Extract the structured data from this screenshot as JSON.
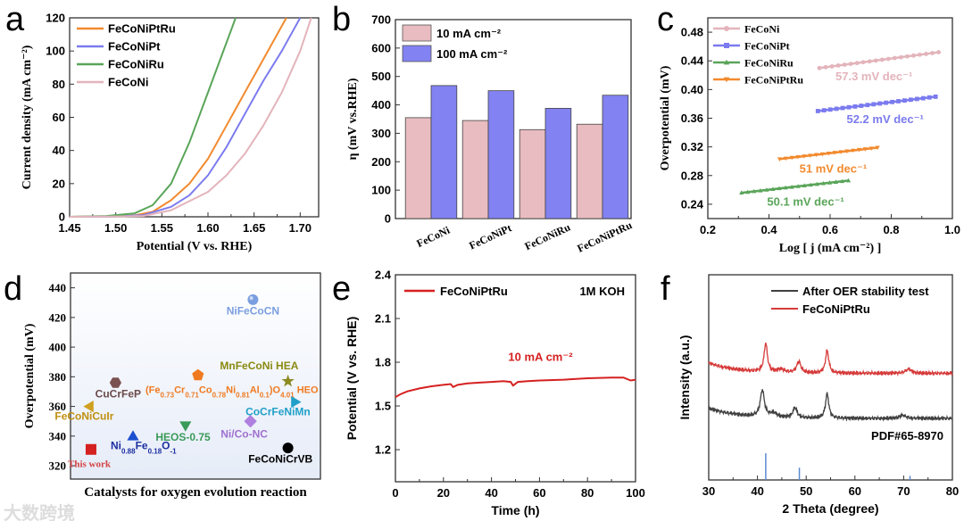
{
  "watermark": "大数跨境",
  "chart_data": [
    {
      "panel": "a",
      "type": "line",
      "xlabel": "Potential (V vs. RHE)",
      "ylabel": "Current density (mA cm⁻²)",
      "xlim": [
        1.45,
        1.72
      ],
      "ylim": [
        0,
        120
      ],
      "xticks": [
        "1.45",
        "1.50",
        "1.55",
        "1.60",
        "1.65",
        "1.70"
      ],
      "xtick_values": [
        1.45,
        1.5,
        1.55,
        1.6,
        1.65,
        1.7
      ],
      "yticks": [
        "0",
        "20",
        "40",
        "60",
        "80",
        "100",
        "120"
      ],
      "ytick_values": [
        0,
        20,
        40,
        60,
        80,
        100,
        120
      ],
      "legend_position": "top-left",
      "series": [
        {
          "name": "FeCoNiPtRu",
          "color": "#f28a2e",
          "x": [
            1.45,
            1.5,
            1.52,
            1.54,
            1.56,
            1.58,
            1.6,
            1.62,
            1.64,
            1.66,
            1.685
          ],
          "y": [
            0,
            0.3,
            0.8,
            3,
            10,
            20,
            35,
            55,
            75,
            95,
            120
          ]
        },
        {
          "name": "FeCoNiPt",
          "color": "#7b7bef",
          "x": [
            1.45,
            1.5,
            1.53,
            1.56,
            1.58,
            1.6,
            1.62,
            1.64,
            1.66,
            1.68,
            1.7
          ],
          "y": [
            0,
            0.2,
            1,
            6,
            13,
            25,
            42,
            62,
            82,
            100,
            120
          ]
        },
        {
          "name": "FeCoNiRu",
          "color": "#5aa55a",
          "x": [
            1.45,
            1.49,
            1.5,
            1.52,
            1.54,
            1.56,
            1.58,
            1.6,
            1.62,
            1.63
          ],
          "y": [
            0,
            0.5,
            1,
            2,
            7,
            20,
            45,
            75,
            105,
            120
          ]
        },
        {
          "name": "FeCoNi",
          "color": "#e3b4bb",
          "x": [
            1.45,
            1.5,
            1.53,
            1.56,
            1.6,
            1.62,
            1.64,
            1.66,
            1.68,
            1.7,
            1.712
          ],
          "y": [
            0,
            0.2,
            0.5,
            4,
            15,
            25,
            38,
            55,
            75,
            100,
            120
          ]
        }
      ]
    },
    {
      "panel": "b",
      "type": "bar",
      "ylabel": "η (mV vs.RHE)",
      "ylim": [
        0,
        700
      ],
      "yticks": [
        "0",
        "100",
        "200",
        "300",
        "400",
        "500",
        "600",
        "700"
      ],
      "ytick_values": [
        0,
        100,
        200,
        300,
        400,
        500,
        600,
        700
      ],
      "categories": [
        "FeCoNi",
        "FeCoNiPt",
        "FeCoNiRu",
        "FeCoNiPtRu"
      ],
      "legend_position": "top-left",
      "series": [
        {
          "name": "10 mA cm⁻²",
          "color": "#e8bcc0",
          "values": [
            355,
            345,
            313,
            332
          ]
        },
        {
          "name": "100 mA cm⁻²",
          "color": "#8282f2",
          "values": [
            468,
            450,
            388,
            434
          ]
        }
      ]
    },
    {
      "panel": "c",
      "type": "line",
      "xlabel": "Log [ j (mA cm⁻²) ]",
      "ylabel": "Overpotential (mV)",
      "xlim": [
        0.2,
        1.0
      ],
      "ylim": [
        0.22,
        0.5
      ],
      "xticks": [
        "0.2",
        "0.4",
        "0.6",
        "0.8",
        "1.0"
      ],
      "xtick_values": [
        0.2,
        0.4,
        0.6,
        0.8,
        1.0
      ],
      "yticks": [
        "0.24",
        "0.28",
        "0.32",
        "0.36",
        "0.40",
        "0.44",
        "0.48"
      ],
      "ytick_values": [
        0.24,
        0.28,
        0.32,
        0.36,
        0.4,
        0.44,
        0.48
      ],
      "legend_position": "top-left",
      "series": [
        {
          "name": "FeCoNi",
          "color": "#e3b4bb",
          "marker": "circle",
          "x": [
            0.565,
            0.955
          ],
          "y": [
            0.43,
            0.452
          ],
          "annotation": "57.3 mV dec⁻¹",
          "ann_at": [
            0.74,
            0.413
          ]
        },
        {
          "name": "FeCoNiPt",
          "color": "#7b7bef",
          "marker": "square",
          "x": [
            0.56,
            0.945
          ],
          "y": [
            0.37,
            0.39
          ],
          "annotation": "52.2 mV dec⁻¹",
          "ann_at": [
            0.78,
            0.353
          ]
        },
        {
          "name": "FeCoNiRu",
          "color": "#5aa55a",
          "marker": "triangle",
          "x": [
            0.31,
            0.66
          ],
          "y": [
            0.256,
            0.273
          ],
          "annotation": "50.1 mV dec⁻¹",
          "ann_at": [
            0.52,
            0.238
          ]
        },
        {
          "name": "FeCoNiPtRu",
          "color": "#f28a2e",
          "marker": "tri-down",
          "x": [
            0.435,
            0.755
          ],
          "y": [
            0.303,
            0.319
          ],
          "annotation": "51 mV dec⁻¹",
          "ann_at": [
            0.61,
            0.284
          ]
        }
      ]
    },
    {
      "panel": "d",
      "type": "scatter",
      "xlabel": "Catalysts for oxygen evolution reaction",
      "ylabel": "Overpotential (mV)",
      "xlim": [
        0,
        10
      ],
      "ylim": [
        311,
        450
      ],
      "yticks": [
        "320",
        "340",
        "360",
        "380",
        "400",
        "420",
        "440"
      ],
      "ytick_values": [
        320,
        340,
        360,
        380,
        400,
        420,
        440
      ],
      "points": [
        {
          "label": [
            {
              "t": "This work"
            }
          ],
          "x": 0.82,
          "y": 331,
          "marker": "square",
          "color": "#d42020",
          "label_color": "#d44040",
          "label_font": "serif",
          "lx": 0.75,
          "ly": 322
        },
        {
          "label": [
            {
              "t": "CuCrFeP"
            }
          ],
          "x": 1.8,
          "y": 376,
          "marker": "hexagon",
          "color": "#7a5050",
          "label_color": "#6a4a4a",
          "lx": 1.8,
          "ly": 366
        },
        {
          "label": [
            {
              "t": "FeCoNiCuIr"
            }
          ],
          "x": 0.75,
          "y": 360,
          "marker": "tri-left",
          "color": "#d0a020",
          "label_color": "#c09010",
          "lx": 0.55,
          "ly": 351
        },
        {
          "label": [
            {
              "t": "Ni"
            },
            {
              "t": "0.88",
              "sub": true
            },
            {
              "t": "Fe"
            },
            {
              "t": "0.18",
              "sub": true
            },
            {
              "t": "O"
            },
            {
              "t": "-1",
              "sub": true
            }
          ],
          "x": 2.5,
          "y": 340,
          "marker": "triangle",
          "color": "#1c4fd0",
          "label_color": "#1c2fa0",
          "lx": 2.55,
          "ly": 330
        },
        {
          "label": [
            {
              "t": "(Fe"
            },
            {
              "t": "0.73",
              "sub": true
            },
            {
              "t": "Cr"
            },
            {
              "t": "0.71",
              "sub": true
            },
            {
              "t": "Co"
            },
            {
              "t": "0.78",
              "sub": true
            },
            {
              "t": "Ni"
            },
            {
              "t": "0.81",
              "sub": true
            },
            {
              "t": "Al"
            },
            {
              "t": "0.1",
              "sub": true
            },
            {
              "t": ")O"
            },
            {
              "t": "4.01",
              "sub": true
            },
            {
              "t": " HEO"
            }
          ],
          "x": 5.1,
          "y": 381,
          "marker": "pentagon",
          "color": "#f07a20",
          "label_color": "#f07a20",
          "lx": 6.6,
          "ly": 369
        },
        {
          "label": [
            {
              "t": "HEOS-0.75"
            }
          ],
          "x": 4.6,
          "y": 347,
          "marker": "tri-down",
          "color": "#3a9a5a",
          "label_color": "#3a9a5a",
          "lx": 4.5,
          "ly": 337
        },
        {
          "label": [
            {
              "t": "NiFeCoCN"
            }
          ],
          "x": 7.3,
          "y": 432,
          "marker": "sphere",
          "color": "#7a9ee0",
          "label_color": "#7a9ee0",
          "lx": 7.3,
          "ly": 422
        },
        {
          "label": [
            {
              "t": "Ni/Co-NC"
            }
          ],
          "x": 7.2,
          "y": 350,
          "marker": "diamond",
          "color": "#b080e0",
          "label_color": "#a070d0",
          "lx": 6.95,
          "ly": 339
        },
        {
          "label": [
            {
              "t": "MnFeCoNi HEA"
            }
          ],
          "x": 8.7,
          "y": 377,
          "marker": "star",
          "color": "#8a8a20",
          "label_color": "#8a8a10",
          "lx": 7.55,
          "ly": 385
        },
        {
          "label": [
            {
              "t": "CoCrFeNiMn"
            }
          ],
          "x": 9.0,
          "y": 363,
          "marker": "tri-right",
          "color": "#20a0c8",
          "label_color": "#20a0c8",
          "lx": 8.3,
          "ly": 354
        },
        {
          "label": [
            {
              "t": "FeCoNiCrVB"
            }
          ],
          "x": 8.7,
          "y": 332,
          "marker": "circle",
          "color": "#000000",
          "label_color": "#000000",
          "lx": 8.4,
          "ly": 322
        }
      ]
    },
    {
      "panel": "e",
      "type": "line",
      "xlabel": "Time (h)",
      "ylabel": "Potential (V vs. RHE)",
      "xlim": [
        0,
        100
      ],
      "ylim": [
        0.98,
        2.4
      ],
      "xticks": [
        "0",
        "20",
        "40",
        "60",
        "80",
        "100"
      ],
      "xtick_values": [
        0,
        20,
        40,
        60,
        80,
        100
      ],
      "yticks": [
        "1.2",
        "1.5",
        "1.8",
        "2.1",
        "2.4"
      ],
      "ytick_values": [
        1.2,
        1.5,
        1.8,
        2.1,
        2.4
      ],
      "legend_position": "top-left",
      "annotation_top_right": "1M KOH",
      "annotation": "10 mA cm⁻²",
      "series": [
        {
          "name": "FeCoNiPtRu",
          "color": "#d62020",
          "x": [
            0,
            2,
            5,
            10,
            15,
            20,
            23,
            24,
            26,
            30,
            35,
            40,
            45,
            48,
            49,
            51,
            55,
            60,
            70,
            80,
            90,
            95,
            98,
            100
          ],
          "y": [
            1.56,
            1.58,
            1.6,
            1.62,
            1.635,
            1.645,
            1.65,
            1.63,
            1.645,
            1.655,
            1.66,
            1.665,
            1.67,
            1.665,
            1.64,
            1.665,
            1.67,
            1.675,
            1.68,
            1.69,
            1.695,
            1.695,
            1.675,
            1.68
          ]
        }
      ]
    },
    {
      "panel": "f",
      "type": "line",
      "xlabel": "2 Theta (degree)",
      "ylabel": "Intensity (a.u.)",
      "xlim": [
        30,
        80
      ],
      "ylim": [
        0,
        1
      ],
      "xticks": [
        "30",
        "40",
        "50",
        "60",
        "70",
        "80"
      ],
      "xtick_values": [
        30,
        40,
        50,
        60,
        70,
        80
      ],
      "legend_position": "top-right",
      "reference_label": "PDF#65-8970",
      "reference_color": "#5a8ad0",
      "reference_peaks": [
        {
          "x": 41.7,
          "h": 0.13
        },
        {
          "x": 48.6,
          "h": 0.06
        },
        {
          "x": 71.3,
          "h": 0.02
        }
      ],
      "series": [
        {
          "name": "After OER stability test",
          "color": "#404040",
          "baseline": 0.3,
          "decay": 0.05,
          "peaks": [
            [
              41.0,
              0.13,
              0.5
            ],
            [
              43.3,
              0.02,
              0.8
            ],
            [
              47.7,
              0.05,
              0.5
            ],
            [
              54.3,
              0.12,
              0.4
            ],
            [
              69.8,
              0.015,
              0.8
            ]
          ]
        },
        {
          "name": "FeCoNiPtRu",
          "color": "#d63a3a",
          "baseline": 0.52,
          "decay": 0.05,
          "peaks": [
            [
              41.7,
              0.14,
              0.4
            ],
            [
              44.8,
              0.015,
              0.8
            ],
            [
              48.5,
              0.055,
              0.5
            ],
            [
              54.3,
              0.11,
              0.4
            ],
            [
              71.0,
              0.02,
              0.7
            ]
          ]
        }
      ]
    }
  ]
}
